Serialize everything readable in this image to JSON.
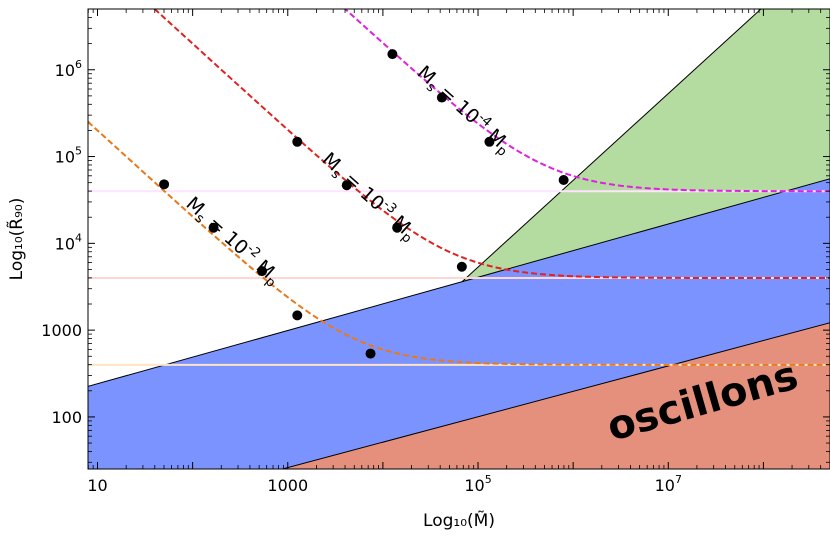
{
  "chart_data": {
    "type": "line",
    "xscale": "log10",
    "yscale": "log10",
    "xlabel": "Log₁₀(M̃)",
    "ylabel": "Log₁₀(R̃₉₀)",
    "xlim_log10": [
      0.9,
      8.7
    ],
    "ylim_log10": [
      1.4,
      6.7
    ],
    "x_ticks": [
      {
        "log": 1,
        "label": "10"
      },
      {
        "log": 3,
        "label": "1000"
      },
      {
        "log": 5,
        "label": "10",
        "sup": "5"
      },
      {
        "log": 7,
        "label": "10",
        "sup": "7"
      }
    ],
    "y_ticks": [
      {
        "log": 2,
        "label": "100"
      },
      {
        "log": 3,
        "label": "1000"
      },
      {
        "log": 4,
        "label": "10",
        "sup": "4"
      },
      {
        "log": 5,
        "label": "10",
        "sup": "5"
      },
      {
        "log": 6,
        "label": "10",
        "sup": "6"
      }
    ],
    "regions": [
      {
        "name": "blue-band",
        "color": "#7b93ff",
        "upper_line": {
          "intercept": 2.076,
          "slope": 0.3067
        },
        "lower_line": {
          "intercept": 0.538,
          "slope": 0.2928
        }
      },
      {
        "name": "oscillons",
        "label": "oscillons",
        "color": "#e4907c",
        "upper_line": {
          "intercept": 0.538,
          "slope": 0.2928
        }
      },
      {
        "name": "green-wedge",
        "color": "#b5dca0",
        "vertex_log": [
          4.83,
          3.556
        ],
        "edge_slope": 1.0,
        "upper_boundary_log10": 6.7
      }
    ],
    "series": [
      {
        "name": "Ms = 10^-2 Mp",
        "label_prefix": "M",
        "label_sub": "s",
        "label_mid": " = 10",
        "label_sup": "-2",
        "label_unit": " M",
        "label_unit_sub": "p",
        "color": "#e8791a",
        "plateau_log10": 2.6,
        "slope": -1.0,
        "knee_log10": 3.7,
        "points_log10": [
          [
            1.7,
            4.68
          ],
          [
            2.22,
            4.18
          ],
          [
            2.73,
            3.68
          ],
          [
            3.1,
            3.17
          ],
          [
            3.87,
            2.73
          ]
        ]
      },
      {
        "name": "Ms = 10^-3 Mp",
        "label_prefix": "M",
        "label_sub": "s",
        "label_mid": " = 10",
        "label_sup": "-3",
        "label_unit": " M",
        "label_unit_sub": "p",
        "color": "#e02222",
        "plateau_log10": 3.6,
        "slope": -1.0,
        "knee_log10": 4.7,
        "points_log10": [
          [
            3.1,
            5.17
          ],
          [
            3.62,
            4.67
          ],
          [
            4.15,
            4.18
          ],
          [
            4.83,
            3.73
          ]
        ]
      },
      {
        "name": "Ms = 10^-4 Mp",
        "label_prefix": "M",
        "label_sub": "s",
        "label_mid": " = 10",
        "label_sup": "-4",
        "label_unit": " M",
        "label_unit_sub": "p",
        "color": "#e020e0",
        "plateau_log10": 4.6,
        "slope": -1.0,
        "knee_log10": 5.7,
        "points_log10": [
          [
            4.1,
            6.18
          ],
          [
            4.62,
            5.68
          ],
          [
            5.12,
            5.17
          ],
          [
            5.9,
            4.73
          ]
        ]
      }
    ],
    "reference_lines_log10": [
      {
        "y": 2.6,
        "color": "#ffe4c4"
      },
      {
        "y": 3.6,
        "color": "#ffd6d6"
      },
      {
        "y": 4.6,
        "color": "#ffe4ff"
      }
    ]
  }
}
